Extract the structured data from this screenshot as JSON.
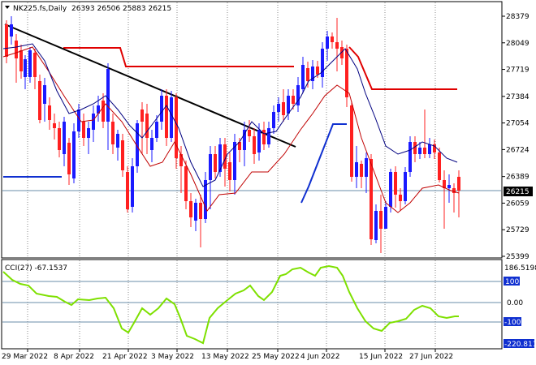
{
  "header": {
    "symbol": "NK225.fs,Daily",
    "ohlc": "26393 26506 25883 26215"
  },
  "indicator": {
    "label": "CCI(27) -67.1537",
    "max_label": "186.5198",
    "min_label": "-220.811",
    "levels": [
      "100",
      "0.00",
      "-100"
    ]
  },
  "colors": {
    "bull": "#1a1aff",
    "bear": "#ff2020",
    "resistance": "#e00000",
    "support": "#1030d0",
    "trendline": "#000000",
    "ma_fast": "#000080",
    "ma_slow": "#c00000",
    "cci": "#7ee000",
    "current_price_box": "#000000"
  },
  "chart_data": {
    "type": "candlestick",
    "price_axis": {
      "ticks": [
        "28379",
        "28049",
        "27719",
        "27384",
        "27054",
        "26724",
        "26389",
        "26059",
        "25729",
        "25399"
      ],
      "ylim": [
        25399,
        28379
      ],
      "current_price": "26215"
    },
    "date_axis": [
      "29 Mar 2022",
      "8 Apr 2022",
      "21 Apr 2022",
      "3 May 2022",
      "13 May 2022",
      "25 May 2022",
      "4 Jun 2022",
      "15 Jun 2022",
      "27 Jun 2022"
    ]
  }
}
